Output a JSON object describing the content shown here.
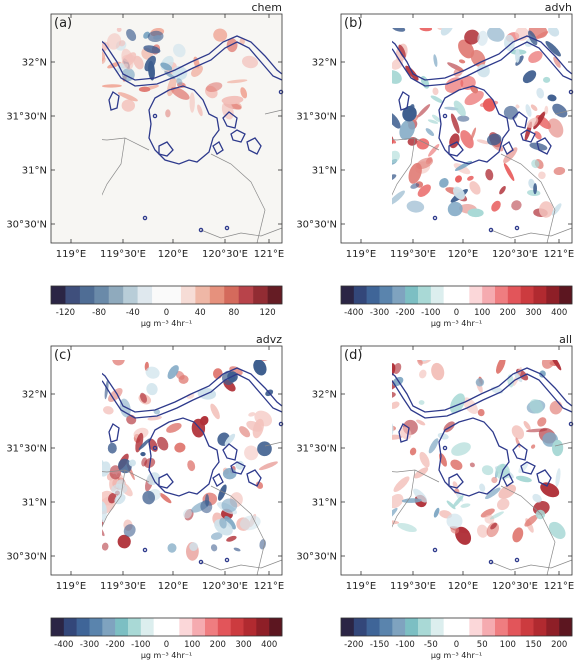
{
  "figure": {
    "panels": [
      {
        "id": "a",
        "letter": "(a)",
        "title": "chem",
        "lat_ticks": [
          "32°N",
          "31°30'N",
          "31°N",
          "30°30'N"
        ],
        "lon_ticks": [
          "119°E",
          "119°30'E",
          "120°E",
          "120°30'E",
          "121°E"
        ],
        "colorbar": {
          "tick_labels": [
            "-120",
            "-80",
            "-40",
            "0",
            "40",
            "80",
            "120"
          ],
          "unit": "µg m⁻³ 4hr⁻¹",
          "colors": [
            "#2b2545",
            "#3f4f7c",
            "#4f6d95",
            "#6a8aa9",
            "#8faabd",
            "#b8cdd8",
            "#dfe8ee",
            "#fafafa",
            "#fafafa",
            "#f6dcd6",
            "#efb7a6",
            "#e6917d",
            "#d46a5c",
            "#b8434a",
            "#922c33",
            "#651c24"
          ]
        }
      },
      {
        "id": "b",
        "letter": "(b)",
        "title": "advh",
        "lat_ticks": [
          "32°N",
          "31°30'N",
          "31°N",
          "30°30'N"
        ],
        "lon_ticks": [
          "119°E",
          "119°30'E",
          "120°E",
          "120°30'E",
          "121°E"
        ],
        "colorbar": {
          "tick_labels": [
            "-400",
            "-300",
            "-200",
            "-100",
            "0",
            "100",
            "200",
            "300",
            "400"
          ],
          "unit": "µg m⁻³ 4hr⁻¹",
          "colors": [
            "#2b2545",
            "#33477a",
            "#3f6598",
            "#5a84ad",
            "#7fa3bf",
            "#7cbfc3",
            "#a9d9d6",
            "#dceeee",
            "#ffffff",
            "#ffffff",
            "#fbd7d9",
            "#f5abb0",
            "#ef7d80",
            "#e2555a",
            "#cc3b3f",
            "#b12a30",
            "#8e1f27",
            "#5c1620"
          ]
        }
      },
      {
        "id": "c",
        "letter": "(c)",
        "title": "advz",
        "lat_ticks": [
          "32°N",
          "31°30'N",
          "31°N",
          "30°30'N"
        ],
        "lon_ticks": [
          "119°E",
          "119°30'E",
          "120°E",
          "120°30'E",
          "121°E"
        ],
        "colorbar": {
          "tick_labels": [
            "-400",
            "-300",
            "-200",
            "-100",
            "0",
            "100",
            "200",
            "300",
            "400"
          ],
          "unit": "µg m⁻³ 4hr⁻¹",
          "colors": [
            "#2b2545",
            "#33477a",
            "#3f6598",
            "#5a84ad",
            "#7fa3bf",
            "#7cbfc3",
            "#a9d9d6",
            "#dceeee",
            "#ffffff",
            "#ffffff",
            "#fbd7d9",
            "#f5abb0",
            "#ef7d80",
            "#e2555a",
            "#cc3b3f",
            "#b12a30",
            "#8e1f27",
            "#5c1620"
          ]
        }
      },
      {
        "id": "d",
        "letter": "(d)",
        "title": "all",
        "lat_ticks": [
          "32°N",
          "31°30'N",
          "31°N",
          "30°30'N"
        ],
        "lon_ticks": [
          "119°E",
          "119°30'E",
          "120°E",
          "120°30'E",
          "121°E"
        ],
        "colorbar": {
          "tick_labels": [
            "-200",
            "-150",
            "-100",
            "-50",
            "0",
            "50",
            "100",
            "150",
            "200"
          ],
          "unit": "µg m⁻³ 4hr⁻¹",
          "colors": [
            "#2b2545",
            "#33477a",
            "#3f6598",
            "#5a84ad",
            "#7fa3bf",
            "#7cbfc3",
            "#a9d9d6",
            "#dceeee",
            "#ffffff",
            "#ffffff",
            "#fbd7d9",
            "#f5abb0",
            "#ef7d80",
            "#e2555a",
            "#cc3b3f",
            "#b12a30",
            "#8e1f27",
            "#5c1620"
          ]
        }
      }
    ],
    "colors": {
      "lake_outline": "#2e3a8c",
      "boundary": "#8a8a8a",
      "frame": "#333333",
      "background_a": "#f7f6f3",
      "background_other": "#ffffff",
      "red_blob": "#e07b74",
      "red_light": "#f3c1bb",
      "blue_blob": "#7fa8c4",
      "blue_light": "#cfe3ec",
      "dark_red": "#b03038",
      "dark_blue": "#3d5d8e"
    }
  }
}
